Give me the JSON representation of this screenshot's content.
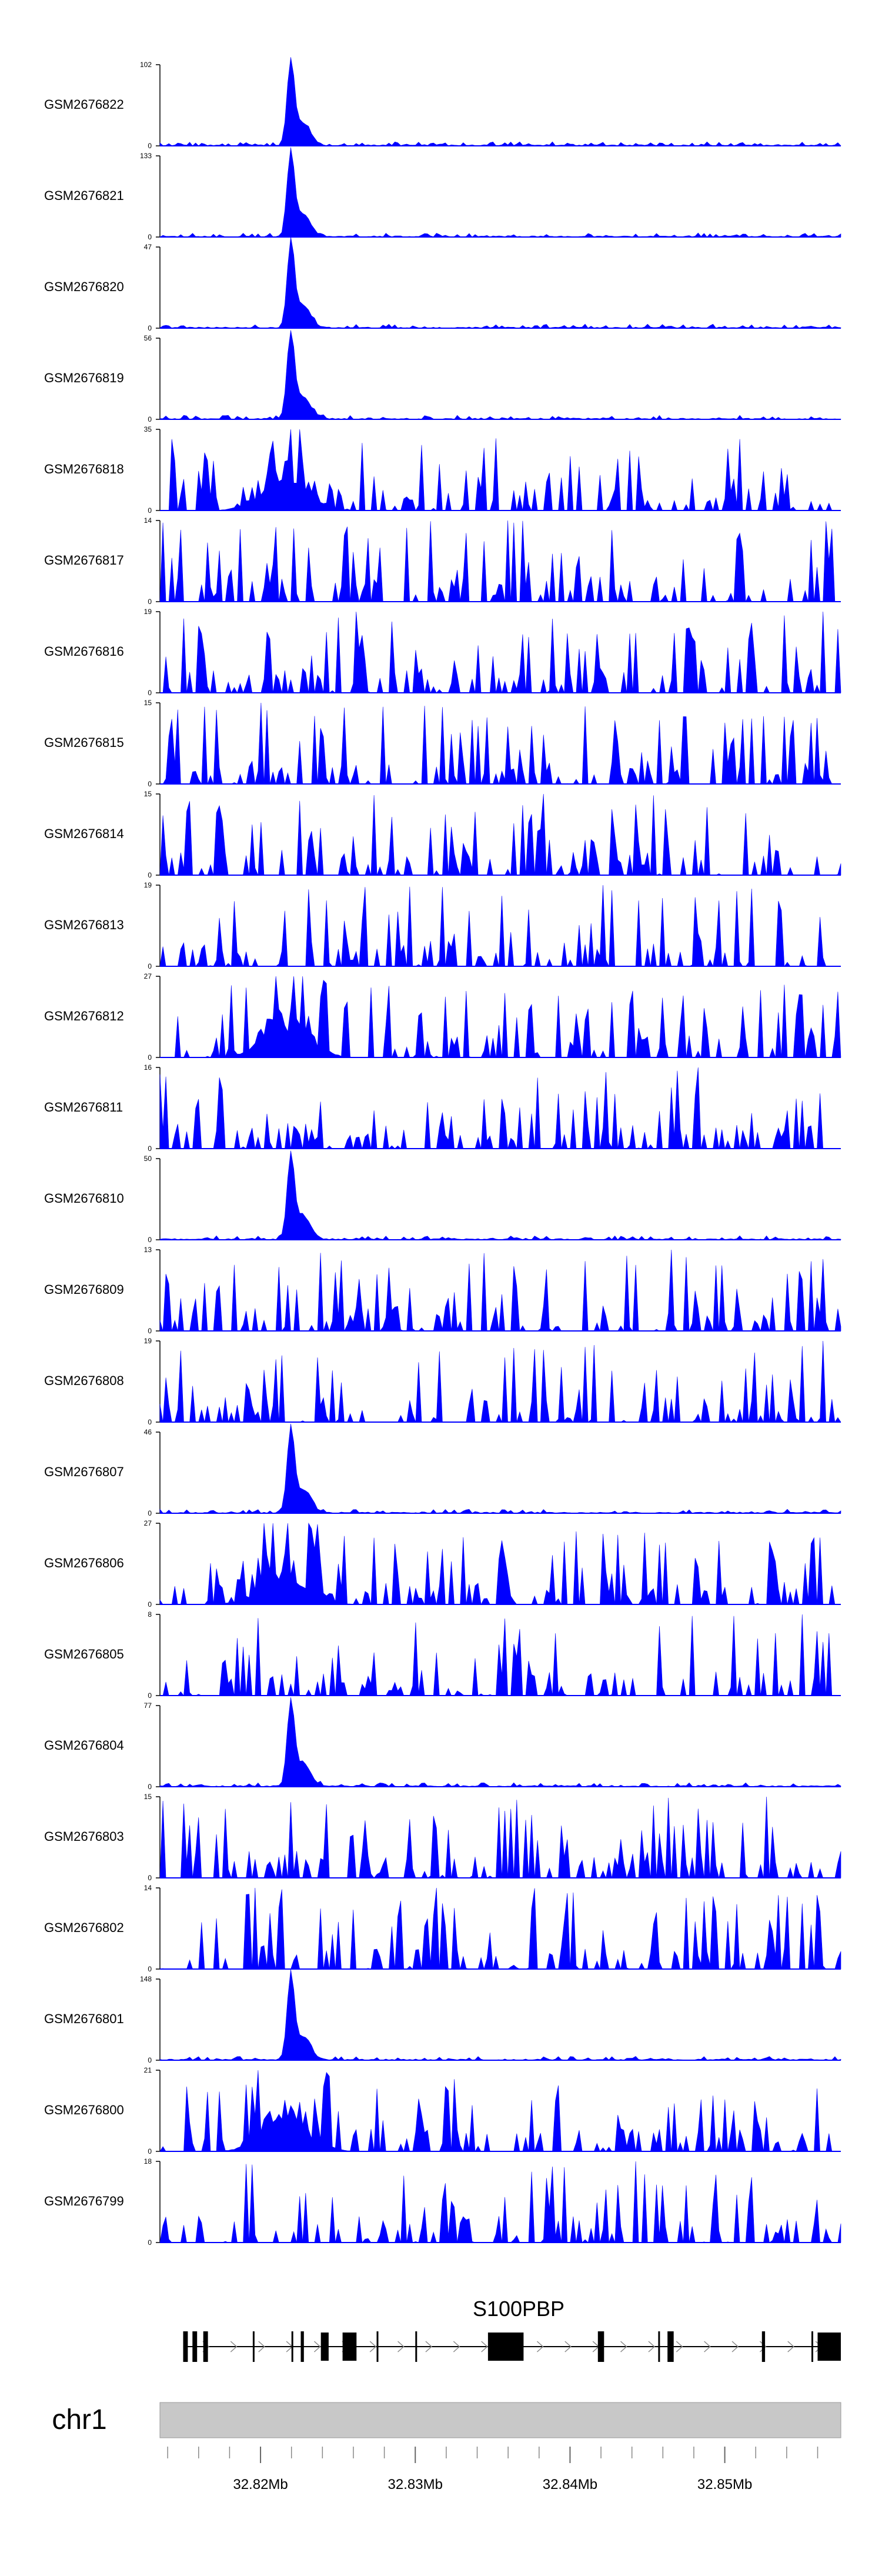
{
  "chart_data": {
    "type": "area",
    "title": "",
    "xlabel": "",
    "ylabel": "",
    "region": {
      "chrom": "chr1",
      "start": 32813500,
      "end": 32857500
    },
    "colors": {
      "coverage": "#0000ff",
      "axis": "#000000",
      "ideogram": "#c8c8c8",
      "gene": "#000000"
    },
    "tracks": [
      {
        "sample": "GSM2676822",
        "ymax": 102,
        "ymin": 0
      },
      {
        "sample": "GSM2676821",
        "ymax": 133,
        "ymin": 0
      },
      {
        "sample": "GSM2676820",
        "ymax": 47,
        "ymin": 0
      },
      {
        "sample": "GSM2676819",
        "ymax": 56,
        "ymin": 0
      },
      {
        "sample": "GSM2676818",
        "ymax": 35,
        "ymin": 0
      },
      {
        "sample": "GSM2676817",
        "ymax": 14,
        "ymin": 0
      },
      {
        "sample": "GSM2676816",
        "ymax": 19,
        "ymin": 0
      },
      {
        "sample": "GSM2676815",
        "ymax": 15,
        "ymin": 0
      },
      {
        "sample": "GSM2676814",
        "ymax": 15,
        "ymin": 0
      },
      {
        "sample": "GSM2676813",
        "ymax": 19,
        "ymin": 0
      },
      {
        "sample": "GSM2676812",
        "ymax": 27,
        "ymin": 0
      },
      {
        "sample": "GSM2676811",
        "ymax": 16,
        "ymin": 0
      },
      {
        "sample": "GSM2676810",
        "ymax": 50,
        "ymin": 0
      },
      {
        "sample": "GSM2676809",
        "ymax": 13,
        "ymin": 0
      },
      {
        "sample": "GSM2676808",
        "ymax": 19,
        "ymin": 0
      },
      {
        "sample": "GSM2676807",
        "ymax": 46,
        "ymin": 0
      },
      {
        "sample": "GSM2676806",
        "ymax": 27,
        "ymin": 0
      },
      {
        "sample": "GSM2676805",
        "ymax": 8,
        "ymin": 0
      },
      {
        "sample": "GSM2676804",
        "ymax": 77,
        "ymin": 0
      },
      {
        "sample": "GSM2676803",
        "ymax": 15,
        "ymin": 0
      },
      {
        "sample": "GSM2676802",
        "ymax": 14,
        "ymin": 0
      },
      {
        "sample": "GSM2676801",
        "ymax": 148,
        "ymin": 0
      },
      {
        "sample": "GSM2676800",
        "ymax": 21,
        "ymin": 0
      },
      {
        "sample": "GSM2676799",
        "ymax": 18,
        "ymin": 0
      }
    ],
    "gene": {
      "name": "S100PBP",
      "strand": "+",
      "start": 32815000,
      "end": 32857500,
      "exons": [
        [
          32815000,
          32815300
        ],
        [
          32815600,
          32815900
        ],
        [
          32816300,
          32816600
        ],
        [
          32819500,
          32819600
        ],
        [
          32822000,
          32822100
        ],
        [
          32822600,
          32822800
        ],
        [
          32823900,
          32824400
        ],
        [
          32825300,
          32826200
        ],
        [
          32827500,
          32827600
        ],
        [
          32830000,
          32830100
        ],
        [
          32834700,
          32837000
        ],
        [
          32841800,
          32842200
        ],
        [
          32845700,
          32845800
        ],
        [
          32846300,
          32846700
        ],
        [
          32852400,
          32852600
        ],
        [
          32855600,
          32855700
        ],
        [
          32856000,
          32857500
        ]
      ]
    },
    "axis": {
      "chrom_label": "chr1",
      "ticks": [
        {
          "pos": 32820000,
          "label": "32.82Mb"
        },
        {
          "pos": 32830000,
          "label": "32.83Mb"
        },
        {
          "pos": 32840000,
          "label": "32.84Mb"
        },
        {
          "pos": 32850000,
          "label": "32.85Mb"
        }
      ],
      "minor_tick_step": 2000
    }
  }
}
